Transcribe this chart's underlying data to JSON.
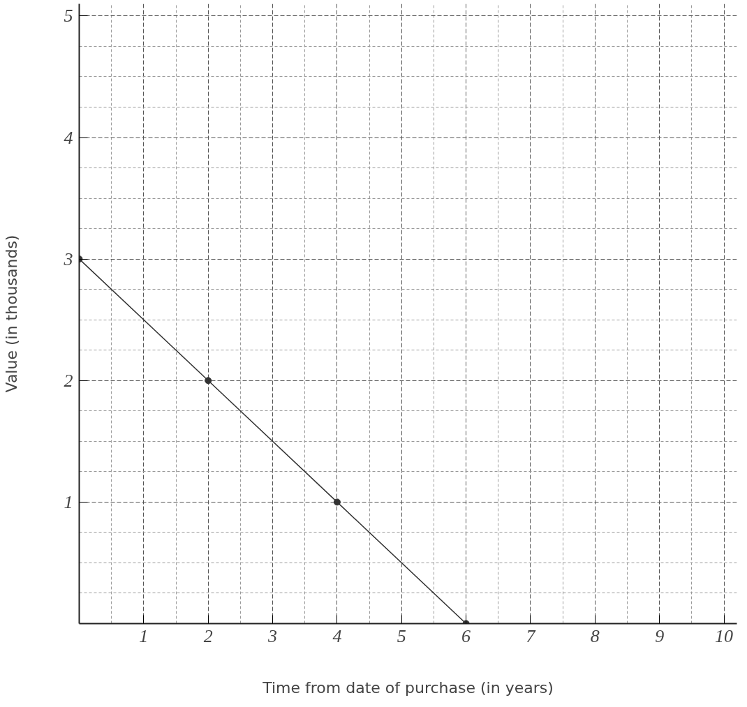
{
  "chart_data": {
    "type": "line",
    "xlabel": "Time from date of purchase (in years)",
    "ylabel": "Value (in thousands)",
    "x": [
      0,
      2,
      4,
      6
    ],
    "series": [
      {
        "color": "#333333",
        "values": [
          3,
          2,
          1,
          0
        ]
      }
    ],
    "xlim": [
      0,
      10.2
    ],
    "ylim": [
      0,
      5.1
    ],
    "xticks": [
      1,
      2,
      3,
      4,
      5,
      6,
      7,
      8,
      9,
      10
    ],
    "yticks": [
      1,
      2,
      3,
      4,
      5
    ],
    "grid": true,
    "marker": "circle",
    "line_style": "solid"
  }
}
